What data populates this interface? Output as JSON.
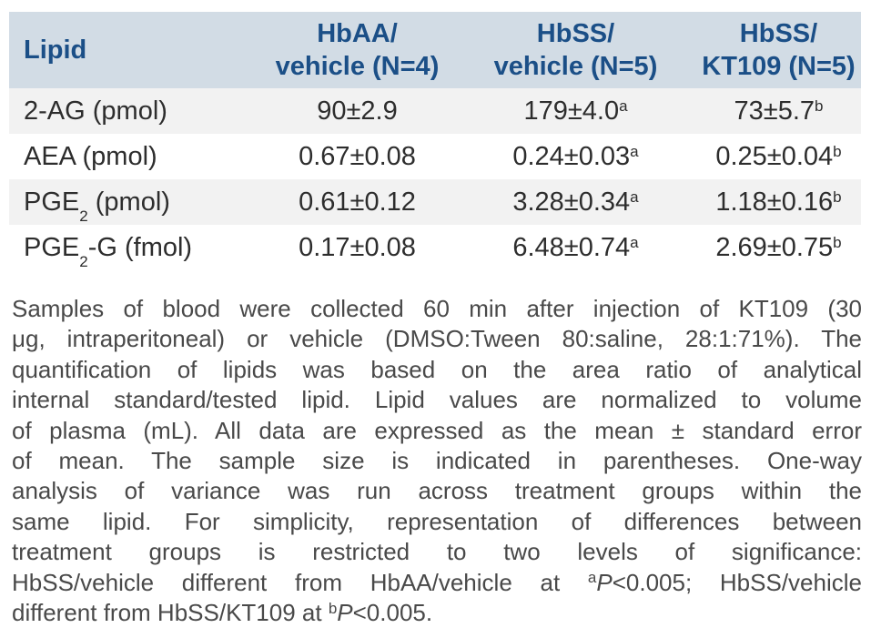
{
  "colors": {
    "header_bg": "#d2dce5",
    "header_text": "#1b4f87",
    "stripe_bg": "#f2f2f2",
    "body_text": "#2d2d2d",
    "caption_text": "#494949",
    "page_bg": "#ffffff"
  },
  "table": {
    "columns": [
      {
        "line1": "Lipid",
        "line2": ""
      },
      {
        "line1": "HbAA/",
        "line2": "vehicle (N=4)"
      },
      {
        "line1": "HbSS/",
        "line2": "vehicle (N=5)"
      },
      {
        "line1": "HbSS/",
        "line2": "KT109 (N=5)"
      }
    ],
    "rows": [
      {
        "lipid": {
          "pre": "2-AG",
          "sub": "",
          "post": " (pmol)"
        },
        "values": [
          {
            "text": "90±2.9",
            "sup": ""
          },
          {
            "text": "179±4.0",
            "sup": "a"
          },
          {
            "text": "73±5.7",
            "sup": "b"
          }
        ]
      },
      {
        "lipid": {
          "pre": "AEA",
          "sub": "",
          "post": " (pmol)"
        },
        "values": [
          {
            "text": "0.67±0.08",
            "sup": ""
          },
          {
            "text": "0.24±0.03",
            "sup": "a"
          },
          {
            "text": "0.25±0.04",
            "sup": "b"
          }
        ]
      },
      {
        "lipid": {
          "pre": "PGE",
          "sub": "2",
          "post": " (pmol)"
        },
        "values": [
          {
            "text": "0.61±0.12",
            "sup": ""
          },
          {
            "text": "3.28±0.34",
            "sup": "a"
          },
          {
            "text": "1.18±0.16",
            "sup": "b"
          }
        ]
      },
      {
        "lipid": {
          "pre": "PGE",
          "sub": "2",
          "post": "-G (fmol)"
        },
        "values": [
          {
            "text": "0.17±0.08",
            "sup": ""
          },
          {
            "text": "6.48±0.74",
            "sup": "a"
          },
          {
            "text": "2.69±0.75",
            "sup": "b"
          }
        ]
      }
    ]
  },
  "caption": {
    "lines": [
      [
        {
          "t": "Samples of blood were collected 60 min after injection of KT109 (30"
        }
      ],
      [
        {
          "t": "μg, intraperitoneal) or vehicle (DMSO:Tween 80:saline, 28:1:71%). The"
        }
      ],
      [
        {
          "t": "quantification of lipids was based on the area ratio of analytical"
        }
      ],
      [
        {
          "t": "internal standard/tested lipid. Lipid values are normalized to volume"
        }
      ],
      [
        {
          "t": "of plasma (mL). All data are expressed as the mean ± standard error"
        }
      ],
      [
        {
          "t": "of mean. The sample size is indicated in parentheses. One-way"
        }
      ],
      [
        {
          "t": "analysis of variance was run across treatment groups within the"
        }
      ],
      [
        {
          "t": "same lipid. For simplicity, representation of differences between"
        }
      ],
      [
        {
          "t": "treatment groups is restricted to two levels of significance:"
        }
      ],
      [
        {
          "t": "HbSS/vehicle different from HbAA/vehicle at "
        },
        {
          "sup": "a"
        },
        {
          "i": "P"
        },
        {
          "t": "<0.005; HbSS/vehicle"
        }
      ],
      [
        {
          "t": "different from HbSS/KT109 at "
        },
        {
          "sup": "b"
        },
        {
          "i": "P"
        },
        {
          "t": "<0.005."
        }
      ]
    ]
  }
}
